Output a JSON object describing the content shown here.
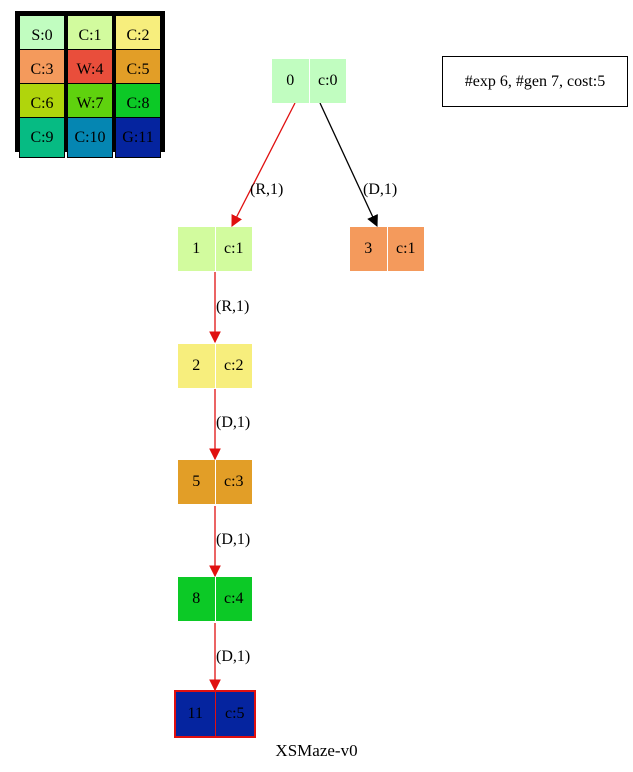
{
  "legend": {
    "rows": [
      [
        {
          "label": "S:0",
          "color": "#c1fdc0"
        },
        {
          "label": "C:1",
          "color": "#d2fb9e"
        },
        {
          "label": "C:2",
          "color": "#f7ee7d"
        }
      ],
      [
        {
          "label": "C:3",
          "color": "#f49a5c"
        },
        {
          "label": "W:4",
          "color": "#e94e3b"
        },
        {
          "label": "C:5",
          "color": "#e29e27"
        }
      ],
      [
        {
          "label": "C:6",
          "color": "#b0d50c"
        },
        {
          "label": "W:7",
          "color": "#5fd20e"
        },
        {
          "label": "C:8",
          "color": "#0cc926"
        }
      ],
      [
        {
          "label": "C:9",
          "color": "#06bb83"
        },
        {
          "label": "C:10",
          "color": "#0586b2"
        },
        {
          "label": "G:11",
          "color": "#05249f"
        }
      ]
    ]
  },
  "info_box": "#exp 6, #gen 7, cost:5",
  "nodes": [
    {
      "id": "0",
      "cost": "c:0",
      "color": "#c1fdc0"
    },
    {
      "id": "1",
      "cost": "c:1",
      "color": "#d2fb9e"
    },
    {
      "id": "3",
      "cost": "c:1",
      "color": "#f49a5c"
    },
    {
      "id": "2",
      "cost": "c:2",
      "color": "#f7ee7d"
    },
    {
      "id": "5",
      "cost": "c:3",
      "color": "#e29e27"
    },
    {
      "id": "8",
      "cost": "c:4",
      "color": "#0cc926"
    },
    {
      "id": "11",
      "cost": "c:5",
      "color": "#05249f"
    }
  ],
  "edges": [
    {
      "label": "(R,1)",
      "color": "#e01010"
    },
    {
      "label": "(D,1)",
      "color": "#000000"
    },
    {
      "label": "(R,1)",
      "color": "#e01010"
    },
    {
      "label": "(D,1)",
      "color": "#e01010"
    },
    {
      "label": "(D,1)",
      "color": "#e01010"
    },
    {
      "label": "(D,1)",
      "color": "#e01010"
    }
  ],
  "caption": "XSMaze-v0"
}
